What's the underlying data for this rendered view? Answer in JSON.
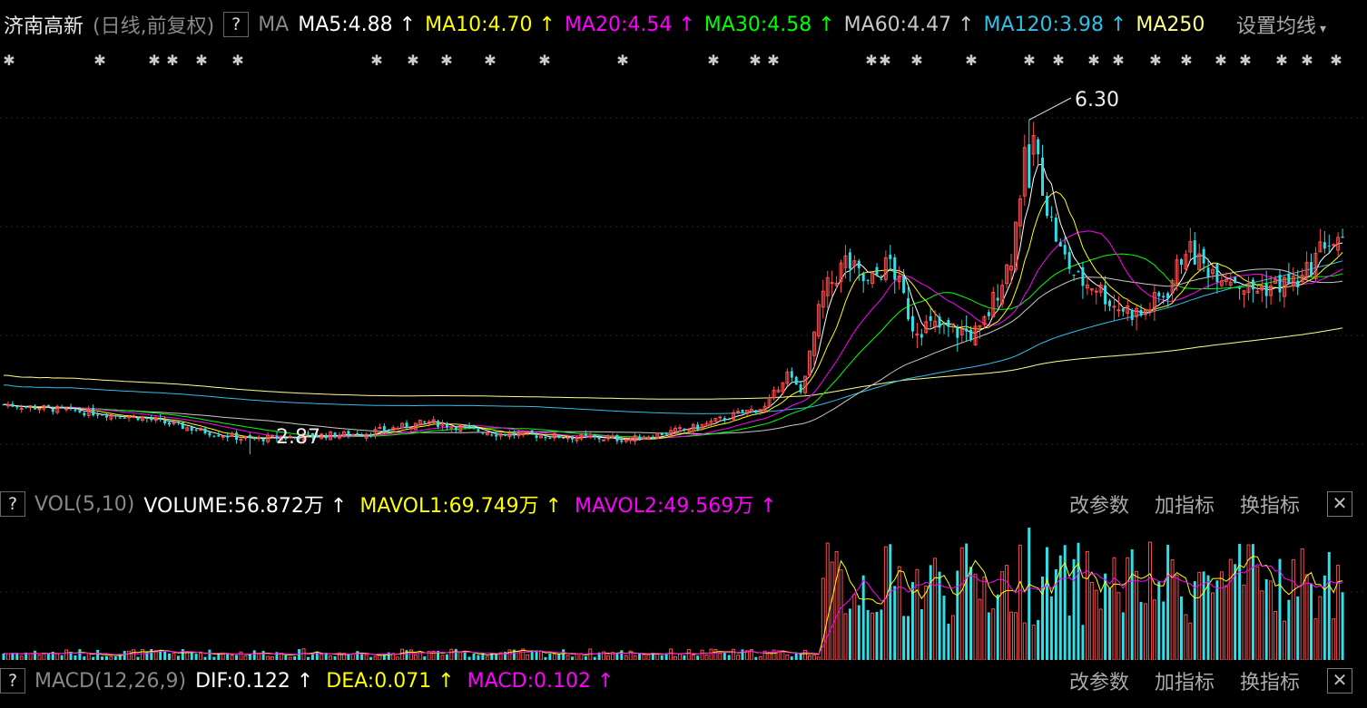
{
  "main_header": {
    "stock_name": "济南高新",
    "mode": "(日线,前复权)",
    "help": "?",
    "ma_label": "MA",
    "items": [
      {
        "text": "MA5:4.88",
        "arrow": "↑",
        "color": "#ffffff"
      },
      {
        "text": "MA10:4.70",
        "arrow": "↑",
        "color": "#ffff00"
      },
      {
        "text": "MA20:4.54",
        "arrow": "↑",
        "color": "#ff00ff"
      },
      {
        "text": "MA30:4.58",
        "arrow": "↑",
        "color": "#00ff00"
      },
      {
        "text": "MA60:4.47",
        "arrow": "↑",
        "color": "#c8c8c8"
      },
      {
        "text": "MA120:3.98",
        "arrow": "↑",
        "color": "#2fc0e8"
      },
      {
        "text": "MA250",
        "arrow": "",
        "color": "#ffff88"
      }
    ],
    "settings": "设置均线"
  },
  "vol_header": {
    "help": "?",
    "label": "VOL(5,10)",
    "items": [
      {
        "text": "VOLUME:56.872万",
        "arrow": "↑",
        "color": "#ffffff"
      },
      {
        "text": "MAVOL1:69.749万",
        "arrow": "↑",
        "color": "#ffff00"
      },
      {
        "text": "MAVOL2:49.569万",
        "arrow": "↑",
        "color": "#ff00ff"
      }
    ],
    "links": [
      "改参数",
      "加指标",
      "换指标"
    ],
    "close": "✕"
  },
  "macd_header": {
    "help": "?",
    "label": "MACD(12,26,9)",
    "items": [
      {
        "text": "DIF:0.122",
        "arrow": "↑",
        "color": "#ffffff"
      },
      {
        "text": "DEA:0.071",
        "arrow": "↑",
        "color": "#ffff00"
      },
      {
        "text": "MACD:0.102",
        "arrow": "↑",
        "color": "#ff00ff"
      }
    ],
    "links": [
      "改参数",
      "加指标",
      "换指标"
    ],
    "close": "✕"
  },
  "chart_data": {
    "type": "candlestick",
    "annotations": {
      "high_label": "6.30",
      "low_label": "2.87"
    },
    "colors": {
      "up": "#ff4d4d",
      "down": "#2fe0e8",
      "ma5": "#ffffff",
      "ma10": "#ffff00",
      "ma20": "#ff00ff",
      "ma30": "#00ff00",
      "ma60": "#c8c8c8",
      "ma120": "#2fc0e8",
      "ma250": "#ffff88"
    },
    "price_anchors": [
      [
        0,
        3.38
      ],
      [
        30,
        3.25
      ],
      [
        45,
        3.1
      ],
      [
        55,
        3.02
      ],
      [
        65,
        3.05
      ],
      [
        80,
        3.08
      ],
      [
        95,
        3.2
      ],
      [
        110,
        3.08
      ],
      [
        125,
        3.05
      ],
      [
        140,
        3.02
      ],
      [
        155,
        3.15
      ],
      [
        165,
        3.3
      ],
      [
        170,
        3.35
      ],
      [
        175,
        3.7
      ],
      [
        178,
        3.5
      ],
      [
        183,
        4.5
      ],
      [
        188,
        4.85
      ],
      [
        193,
        4.6
      ],
      [
        198,
        4.85
      ],
      [
        203,
        4.2
      ],
      [
        210,
        4.15
      ],
      [
        218,
        4.1
      ],
      [
        225,
        4.9
      ],
      [
        228,
        5.9
      ],
      [
        230,
        6.1
      ],
      [
        233,
        5.4
      ],
      [
        236,
        4.95
      ],
      [
        240,
        4.65
      ],
      [
        244,
        4.6
      ],
      [
        248,
        4.4
      ],
      [
        254,
        4.3
      ],
      [
        260,
        4.55
      ],
      [
        264,
        5.0
      ],
      [
        268,
        4.8
      ],
      [
        274,
        4.7
      ],
      [
        278,
        4.55
      ],
      [
        284,
        4.6
      ],
      [
        290,
        4.65
      ],
      [
        295,
        5.05
      ],
      [
        299,
        5.0
      ]
    ],
    "high": 6.3,
    "low": 2.87,
    "macd_indicators": {
      "dif": 0.122,
      "dea": 0.071,
      "macd": 0.102
    }
  }
}
